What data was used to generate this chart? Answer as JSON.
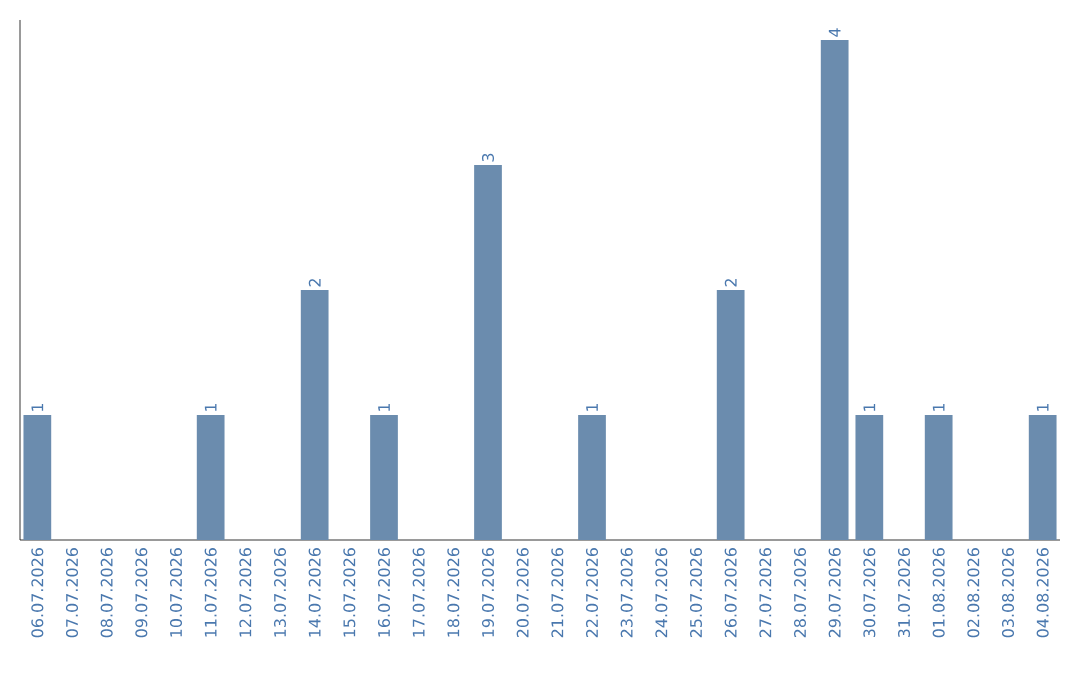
{
  "chart_data": {
    "type": "bar",
    "categories": [
      "06.07.2026",
      "07.07.2026",
      "08.07.2026",
      "09.07.2026",
      "10.07.2026",
      "11.07.2026",
      "12.07.2026",
      "13.07.2026",
      "14.07.2026",
      "15.07.2026",
      "16.07.2026",
      "17.07.2026",
      "18.07.2026",
      "19.07.2026",
      "20.07.2026",
      "21.07.2026",
      "22.07.2026",
      "23.07.2026",
      "24.07.2026",
      "25.07.2026",
      "26.07.2026",
      "27.07.2026",
      "28.07.2026",
      "29.07.2026",
      "30.07.2026",
      "31.07.2026",
      "01.08.2026",
      "02.08.2026",
      "03.08.2026",
      "04.08.2026"
    ],
    "values": [
      1,
      null,
      null,
      null,
      null,
      1,
      null,
      null,
      2,
      null,
      1,
      null,
      null,
      3,
      null,
      null,
      1,
      null,
      null,
      null,
      2,
      null,
      null,
      4,
      1,
      null,
      1,
      null,
      null,
      1
    ],
    "color": "#6b8cae",
    "data_labels": true
  }
}
